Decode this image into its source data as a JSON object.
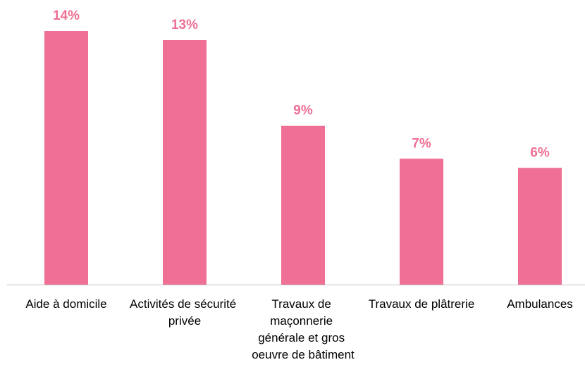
{
  "chart_data": {
    "type": "bar",
    "categories": [
      "Aide à domicile",
      "Activités de sécurité privée",
      "Travaux de maçonnerie générale et gros oeuvre de bâtiment",
      "Travaux de plâtrerie",
      "Ambulances"
    ],
    "values": [
      13.9,
      13.4,
      8.7,
      6.9,
      6.4
    ],
    "value_labels": [
      "14%",
      "13%",
      "9%",
      "7%",
      "6%"
    ],
    "color": "#ef7094",
    "ylim": [
      0,
      15.6
    ]
  }
}
